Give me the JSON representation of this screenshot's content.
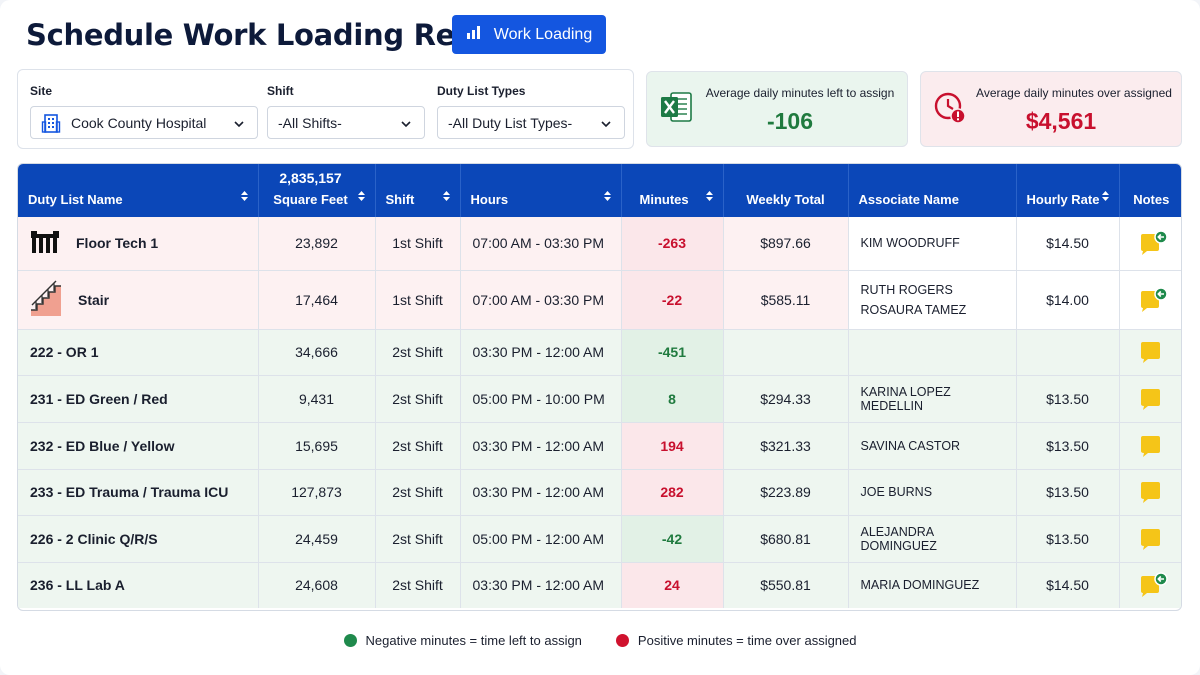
{
  "header": {
    "title": "Schedule Work Loading Report",
    "work_loading_label": "Work Loading"
  },
  "filters": {
    "site": {
      "label": "Site",
      "value": "Cook County Hospital"
    },
    "shift": {
      "label": "Shift",
      "value": "-All Shifts-"
    },
    "duty_list_types": {
      "label": "Duty List Types",
      "value": "-All Duty List Types-"
    }
  },
  "stats": {
    "left_to_assign": {
      "label": "Average daily minutes left to assign",
      "value": "-106"
    },
    "over_assigned": {
      "label": "Average daily minutes over assigned",
      "value": "$4,561"
    }
  },
  "table": {
    "columns": {
      "duty_list_name": "Duty List Name",
      "square_feet_total": "2,835,157",
      "square_feet": "Square Feet",
      "shift": "Shift",
      "hours": "Hours",
      "minutes": "Minutes",
      "weekly_total": "Weekly Total",
      "associate_name": "Associate Name",
      "hourly_rate": "Hourly Rate",
      "notes": "Notes"
    },
    "rows": [
      {
        "name": "Floor Tech 1",
        "sqft": "23,892",
        "shift": "1st Shift",
        "hours": "07:00 AM - 03:30 PM",
        "minutes": "-263",
        "weekly": "$897.66",
        "associate": "KIM WOODRUFF",
        "associate2": "",
        "rate": "$14.50"
      },
      {
        "name": "Stair",
        "sqft": "17,464",
        "shift": "1st Shift",
        "hours": "07:00 AM - 03:30 PM",
        "minutes": "-22",
        "weekly": "$585.11",
        "associate": "RUTH ROGERS",
        "associate2": "ROSAURA TAMEZ",
        "rate": "$14.00"
      },
      {
        "name": "222 - OR 1",
        "sqft": "34,666",
        "shift": "2st Shift",
        "hours": "03:30 PM - 12:00 AM",
        "minutes": "-451",
        "weekly": "",
        "associate": "",
        "associate2": "",
        "rate": ""
      },
      {
        "name": "231 - ED Green / Red",
        "sqft": "9,431",
        "shift": "2st Shift",
        "hours": "05:00 PM - 10:00 PM",
        "minutes": "8",
        "weekly": "$294.33",
        "associate": "KARINA LOPEZ MEDELLIN",
        "associate2": "",
        "rate": "$13.50"
      },
      {
        "name": "232 - ED Blue / Yellow",
        "sqft": "15,695",
        "shift": "2st Shift",
        "hours": "03:30 PM - 12:00 AM",
        "minutes": "194",
        "weekly": "$321.33",
        "associate": "SAVINA CASTOR",
        "associate2": "",
        "rate": "$13.50"
      },
      {
        "name": "233 - ED Trauma / Trauma ICU",
        "sqft": "127,873",
        "shift": "2st Shift",
        "hours": "03:30 PM - 12:00 AM",
        "minutes": "282",
        "weekly": "$223.89",
        "associate": "JOE BURNS",
        "associate2": "",
        "rate": "$13.50"
      },
      {
        "name": "226 - 2 Clinic Q/R/S",
        "sqft": "24,459",
        "shift": "2st Shift",
        "hours": "05:00 PM - 12:00 AM",
        "minutes": "-42",
        "weekly": "$680.81",
        "associate": "ALEJANDRA DOMINGUEZ",
        "associate2": "",
        "rate": "$13.50"
      },
      {
        "name": "236 - LL Lab A",
        "sqft": "24,608",
        "shift": "2st Shift",
        "hours": "03:30 PM - 12:00 AM",
        "minutes": "24",
        "weekly": "$550.81",
        "associate": "MARIA DOMINGUEZ",
        "associate2": "",
        "rate": "$14.50"
      }
    ]
  },
  "legend": {
    "negative": "Negative minutes = time left to assign",
    "positive": "Positive minutes = time over assigned"
  },
  "colors": {
    "primary": "#1456e0",
    "header_bg": "#0b47b8",
    "positive_red": "#c8102e",
    "negative_green": "#1f7a3e",
    "note_yellow": "#f5c518"
  },
  "icons": {
    "work_loading": "bar-chart-icon",
    "site": "building-icon",
    "left_to_assign": "excel-icon",
    "over_assigned": "clock-alert-icon",
    "floor_tech": "floor-tech-icon",
    "stair": "stair-icon",
    "note": "note-icon",
    "note_badge": "note-arrow-badge-icon"
  }
}
